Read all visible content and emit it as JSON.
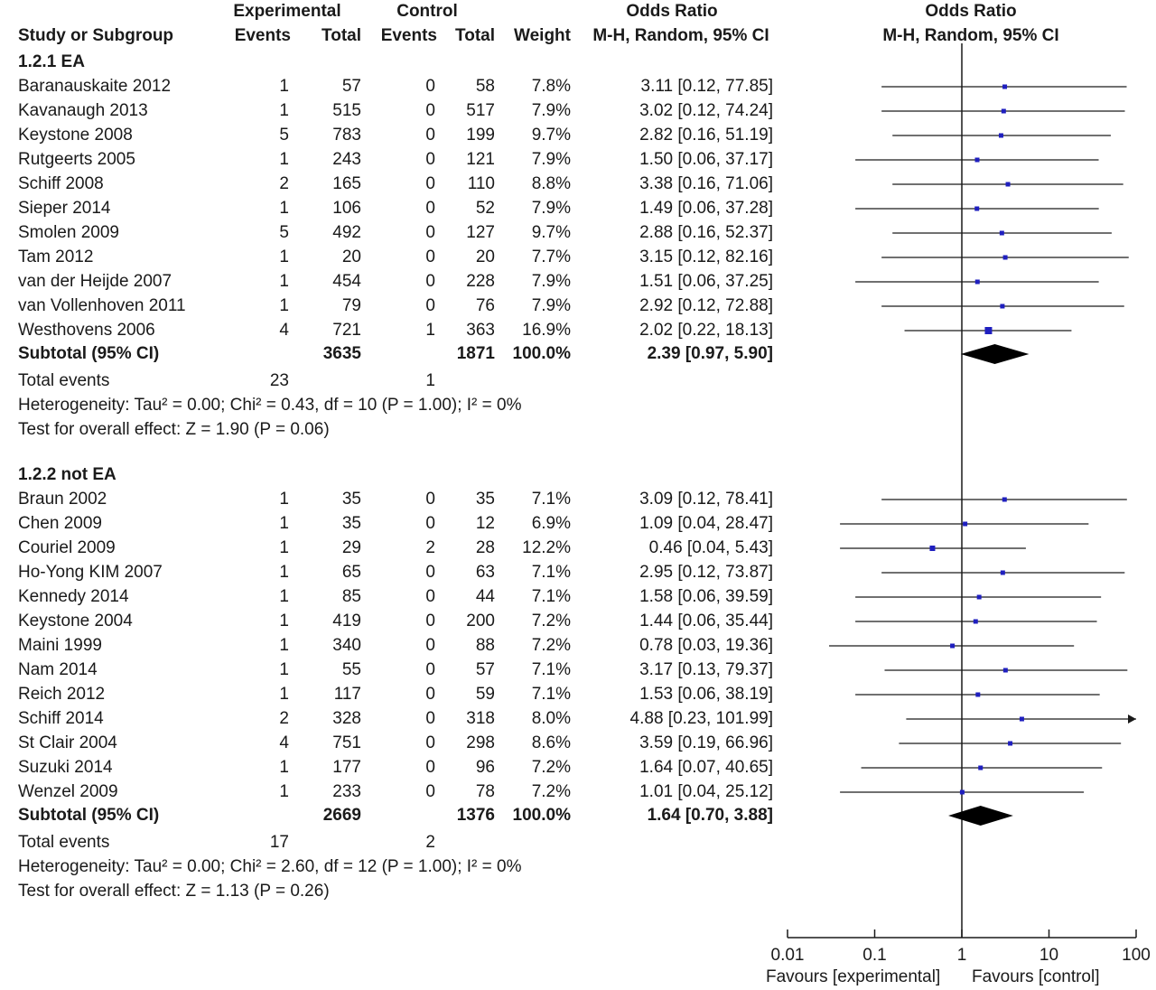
{
  "header": {
    "group1": "Experimental",
    "group2": "Control",
    "or_title": "Odds Ratio",
    "or_method": "M-H, Random, 95% CI",
    "plot_title": "Odds Ratio",
    "plot_method": "M-H, Random, 95% CI",
    "columns": [
      "Study or Subgroup",
      "Events",
      "Total",
      "Events",
      "Total",
      "Weight",
      "M-H, Random, 95% CI"
    ]
  },
  "chart_data": {
    "type": "forest",
    "x_scale": "log",
    "xlim": [
      0.01,
      100
    ],
    "x_ticks": [
      "0.01",
      "0.1",
      "1",
      "10",
      "100"
    ],
    "x_tick_values": [
      0.01,
      0.1,
      1,
      10,
      100
    ],
    "null_value": 1,
    "favours_left": "Favours [experimental]",
    "favours_right": "Favours [control]",
    "subgroups": [
      {
        "title": "1.2.1 EA",
        "studies": [
          {
            "name": "Baranauskaite 2012",
            "e_events": "1",
            "e_total": "57",
            "c_events": "0",
            "c_total": "58",
            "weight": "7.8%",
            "ci_text": "3.11 [0.12, 77.85]",
            "or": 3.11,
            "lo": 0.12,
            "hi": 77.85
          },
          {
            "name": "Kavanaugh 2013",
            "e_events": "1",
            "e_total": "515",
            "c_events": "0",
            "c_total": "517",
            "weight": "7.9%",
            "ci_text": "3.02 [0.12, 74.24]",
            "or": 3.02,
            "lo": 0.12,
            "hi": 74.24
          },
          {
            "name": "Keystone 2008",
            "e_events": "5",
            "e_total": "783",
            "c_events": "0",
            "c_total": "199",
            "weight": "9.7%",
            "ci_text": "2.82 [0.16, 51.19]",
            "or": 2.82,
            "lo": 0.16,
            "hi": 51.19
          },
          {
            "name": "Rutgeerts 2005",
            "e_events": "1",
            "e_total": "243",
            "c_events": "0",
            "c_total": "121",
            "weight": "7.9%",
            "ci_text": "1.50 [0.06, 37.17]",
            "or": 1.5,
            "lo": 0.06,
            "hi": 37.17
          },
          {
            "name": "Schiff 2008",
            "e_events": "2",
            "e_total": "165",
            "c_events": "0",
            "c_total": "110",
            "weight": "8.8%",
            "ci_text": "3.38 [0.16, 71.06]",
            "or": 3.38,
            "lo": 0.16,
            "hi": 71.06
          },
          {
            "name": "Sieper 2014",
            "e_events": "1",
            "e_total": "106",
            "c_events": "0",
            "c_total": "52",
            "weight": "7.9%",
            "ci_text": "1.49 [0.06, 37.28]",
            "or": 1.49,
            "lo": 0.06,
            "hi": 37.28
          },
          {
            "name": "Smolen 2009",
            "e_events": "5",
            "e_total": "492",
            "c_events": "0",
            "c_total": "127",
            "weight": "9.7%",
            "ci_text": "2.88 [0.16, 52.37]",
            "or": 2.88,
            "lo": 0.16,
            "hi": 52.37
          },
          {
            "name": "Tam 2012",
            "e_events": "1",
            "e_total": "20",
            "c_events": "0",
            "c_total": "20",
            "weight": "7.7%",
            "ci_text": "3.15 [0.12, 82.16]",
            "or": 3.15,
            "lo": 0.12,
            "hi": 82.16
          },
          {
            "name": "van der Heijde 2007",
            "e_events": "1",
            "e_total": "454",
            "c_events": "0",
            "c_total": "228",
            "weight": "7.9%",
            "ci_text": "1.51 [0.06, 37.25]",
            "or": 1.51,
            "lo": 0.06,
            "hi": 37.25
          },
          {
            "name": "van Vollenhoven 2011",
            "e_events": "1",
            "e_total": "79",
            "c_events": "0",
            "c_total": "76",
            "weight": "7.9%",
            "ci_text": "2.92 [0.12, 72.88]",
            "or": 2.92,
            "lo": 0.12,
            "hi": 72.88
          },
          {
            "name": "Westhovens 2006",
            "e_events": "4",
            "e_total": "721",
            "c_events": "1",
            "c_total": "363",
            "weight": "16.9%",
            "ci_text": "2.02 [0.22, 18.13]",
            "or": 2.02,
            "lo": 0.22,
            "hi": 18.13
          }
        ],
        "subtotal": {
          "label": "Subtotal (95% CI)",
          "e_total": "3635",
          "c_total": "1871",
          "weight": "100.0%",
          "ci_text": "2.39 [0.97, 5.90]",
          "or": 2.39,
          "lo": 0.97,
          "hi": 5.9
        },
        "events": {
          "label": "Total events",
          "e": "23",
          "c": "1"
        },
        "heterogeneity": "Heterogeneity: Tau² = 0.00; Chi² = 0.43, df = 10 (P = 1.00); I² = 0%",
        "overall": "Test for overall effect: Z = 1.90 (P = 0.06)"
      },
      {
        "title": "1.2.2 not EA",
        "studies": [
          {
            "name": "Braun 2002",
            "e_events": "1",
            "e_total": "35",
            "c_events": "0",
            "c_total": "35",
            "weight": "7.1%",
            "ci_text": "3.09 [0.12, 78.41]",
            "or": 3.09,
            "lo": 0.12,
            "hi": 78.41
          },
          {
            "name": "Chen 2009",
            "e_events": "1",
            "e_total": "35",
            "c_events": "0",
            "c_total": "12",
            "weight": "6.9%",
            "ci_text": "1.09 [0.04, 28.47]",
            "or": 1.09,
            "lo": 0.04,
            "hi": 28.47
          },
          {
            "name": "Couriel 2009",
            "e_events": "1",
            "e_total": "29",
            "c_events": "2",
            "c_total": "28",
            "weight": "12.2%",
            "ci_text": "0.46 [0.04, 5.43]",
            "or": 0.46,
            "lo": 0.04,
            "hi": 5.43
          },
          {
            "name": "Ho-Yong KIM 2007",
            "e_events": "1",
            "e_total": "65",
            "c_events": "0",
            "c_total": "63",
            "weight": "7.1%",
            "ci_text": "2.95 [0.12, 73.87]",
            "or": 2.95,
            "lo": 0.12,
            "hi": 73.87
          },
          {
            "name": "Kennedy 2014",
            "e_events": "1",
            "e_total": "85",
            "c_events": "0",
            "c_total": "44",
            "weight": "7.1%",
            "ci_text": "1.58 [0.06, 39.59]",
            "or": 1.58,
            "lo": 0.06,
            "hi": 39.59
          },
          {
            "name": "Keystone 2004",
            "e_events": "1",
            "e_total": "419",
            "c_events": "0",
            "c_total": "200",
            "weight": "7.2%",
            "ci_text": "1.44 [0.06, 35.44]",
            "or": 1.44,
            "lo": 0.06,
            "hi": 35.44
          },
          {
            "name": "Maini 1999",
            "e_events": "1",
            "e_total": "340",
            "c_events": "0",
            "c_total": "88",
            "weight": "7.2%",
            "ci_text": "0.78 [0.03, 19.36]",
            "or": 0.78,
            "lo": 0.03,
            "hi": 19.36
          },
          {
            "name": "Nam 2014",
            "e_events": "1",
            "e_total": "55",
            "c_events": "0",
            "c_total": "57",
            "weight": "7.1%",
            "ci_text": "3.17 [0.13, 79.37]",
            "or": 3.17,
            "lo": 0.13,
            "hi": 79.37
          },
          {
            "name": "Reich 2012",
            "e_events": "1",
            "e_total": "117",
            "c_events": "0",
            "c_total": "59",
            "weight": "7.1%",
            "ci_text": "1.53 [0.06, 38.19]",
            "or": 1.53,
            "lo": 0.06,
            "hi": 38.19
          },
          {
            "name": "Schiff 2014",
            "e_events": "2",
            "e_total": "328",
            "c_events": "0",
            "c_total": "318",
            "weight": "8.0%",
            "ci_text": "4.88 [0.23, 101.99]",
            "or": 4.88,
            "lo": 0.23,
            "hi": 101.99
          },
          {
            "name": "St Clair 2004",
            "e_events": "4",
            "e_total": "751",
            "c_events": "0",
            "c_total": "298",
            "weight": "8.6%",
            "ci_text": "3.59 [0.19, 66.96]",
            "or": 3.59,
            "lo": 0.19,
            "hi": 66.96
          },
          {
            "name": "Suzuki 2014",
            "e_events": "1",
            "e_total": "177",
            "c_events": "0",
            "c_total": "96",
            "weight": "7.2%",
            "ci_text": "1.64 [0.07, 40.65]",
            "or": 1.64,
            "lo": 0.07,
            "hi": 40.65
          },
          {
            "name": "Wenzel 2009",
            "e_events": "1",
            "e_total": "233",
            "c_events": "0",
            "c_total": "78",
            "weight": "7.2%",
            "ci_text": "1.01 [0.04, 25.12]",
            "or": 1.01,
            "lo": 0.04,
            "hi": 25.12
          }
        ],
        "subtotal": {
          "label": "Subtotal (95% CI)",
          "e_total": "2669",
          "c_total": "1376",
          "weight": "100.0%",
          "ci_text": "1.64 [0.70, 3.88]",
          "or": 1.64,
          "lo": 0.7,
          "hi": 3.88
        },
        "events": {
          "label": "Total events",
          "e": "17",
          "c": "2"
        },
        "heterogeneity": "Heterogeneity: Tau² = 0.00; Chi² = 2.60, df = 12 (P = 1.00); I² = 0%",
        "overall": "Test for overall effect: Z = 1.13 (P = 0.26)"
      }
    ]
  },
  "colors": {
    "study_marker": "#1f1fbf",
    "line": "#1a1a1a",
    "diamond": "#000000"
  }
}
